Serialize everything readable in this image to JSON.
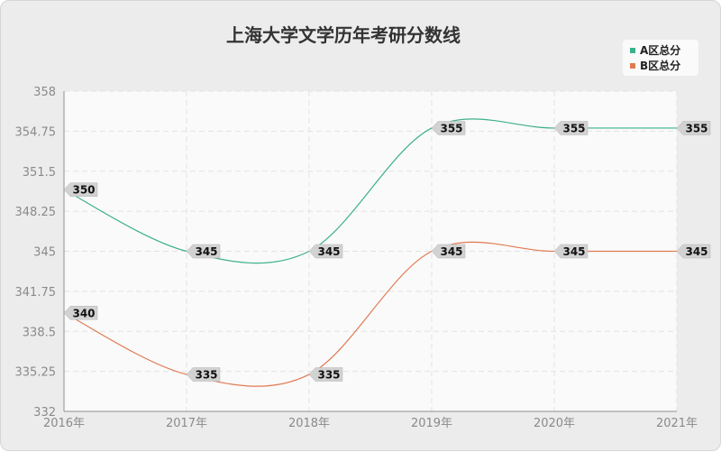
{
  "chart_data": {
    "type": "line",
    "title": "上海大学文学历年考研分数线",
    "categories": [
      "2016年",
      "2017年",
      "2018年",
      "2019年",
      "2020年",
      "2021年"
    ],
    "ylim": [
      332,
      358
    ],
    "yticks": [
      "358",
      "354.75",
      "351.5",
      "348.25",
      "345",
      "341.75",
      "338.5",
      "335.25",
      "332"
    ],
    "grid": true,
    "legend_position": "top-right",
    "series": [
      {
        "name": "A区总分",
        "values": [
          350,
          345,
          345,
          355,
          355,
          355
        ],
        "color": "#3cb08c"
      },
      {
        "name": "B区总分",
        "values": [
          340,
          335,
          335,
          345,
          345,
          345
        ],
        "color": "#e07a52"
      }
    ]
  }
}
